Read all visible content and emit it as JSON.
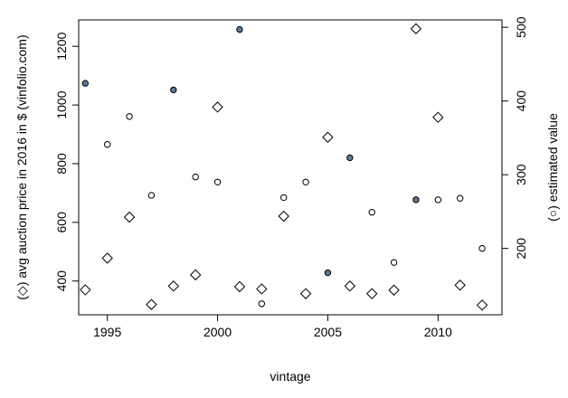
{
  "chart_data": {
    "type": "scatter",
    "xlabel": "vintage",
    "ylabel_left": "(◇) avg auction price in 2016 in $ (vinfolio.com)",
    "ylabel_right": "(○) estimated value",
    "xlim": [
      1993.7,
      2012.9
    ],
    "ylim_left": [
      285,
      1290
    ],
    "ylim_right": [
      110,
      510
    ],
    "x_ticks": [
      1995,
      2000,
      2005,
      2010
    ],
    "y_left_ticks": [
      400,
      600,
      800,
      1000,
      1200
    ],
    "y_right_ticks": [
      200,
      300,
      400,
      500
    ],
    "series": [
      {
        "axis": "left",
        "marker": "diamond",
        "points": [
          {
            "x": 1994,
            "y": 370
          },
          {
            "x": 1995,
            "y": 478
          },
          {
            "x": 1996,
            "y": 618
          },
          {
            "x": 1997,
            "y": 320
          },
          {
            "x": 1998,
            "y": 383
          },
          {
            "x": 1999,
            "y": 421
          },
          {
            "x": 2000,
            "y": 993
          },
          {
            "x": 2001,
            "y": 381
          },
          {
            "x": 2002,
            "y": 373
          },
          {
            "x": 2003,
            "y": 621
          },
          {
            "x": 2004,
            "y": 357
          },
          {
            "x": 2005,
            "y": 890
          },
          {
            "x": 2006,
            "y": 383
          },
          {
            "x": 2007,
            "y": 357
          },
          {
            "x": 2008,
            "y": 369
          },
          {
            "x": 2009,
            "y": 1260
          },
          {
            "x": 2010,
            "y": 958
          },
          {
            "x": 2011,
            "y": 386
          },
          {
            "x": 2012,
            "y": 318
          }
        ]
      },
      {
        "axis": "right",
        "marker": "circle",
        "points": [
          {
            "x": 1994,
            "y": 424,
            "filled": true
          },
          {
            "x": 1995,
            "y": 341,
            "filled": false
          },
          {
            "x": 1996,
            "y": 379,
            "filled": false
          },
          {
            "x": 1997,
            "y": 272,
            "filled": false
          },
          {
            "x": 1998,
            "y": 415,
            "filled": true
          },
          {
            "x": 1999,
            "y": 297,
            "filled": false
          },
          {
            "x": 2000,
            "y": 290,
            "filled": false
          },
          {
            "x": 2001,
            "y": 497,
            "filled": true
          },
          {
            "x": 2002,
            "y": 125,
            "filled": false
          },
          {
            "x": 2003,
            "y": 269,
            "filled": false
          },
          {
            "x": 2004,
            "y": 290,
            "filled": false
          },
          {
            "x": 2005,
            "y": 167,
            "filled": true
          },
          {
            "x": 2006,
            "y": 323,
            "filled": true
          },
          {
            "x": 2007,
            "y": 249,
            "filled": false
          },
          {
            "x": 2008,
            "y": 181,
            "filled": false
          },
          {
            "x": 2009,
            "y": 266,
            "filled": true
          },
          {
            "x": 2010,
            "y": 266,
            "filled": false
          },
          {
            "x": 2011,
            "y": 268,
            "filled": false
          },
          {
            "x": 2012,
            "y": 200,
            "filled": false
          }
        ]
      }
    ],
    "colors": {
      "filled_point": "#5b7a99",
      "open_point": "#ffffff",
      "stroke": "#000000"
    },
    "grid": false
  }
}
